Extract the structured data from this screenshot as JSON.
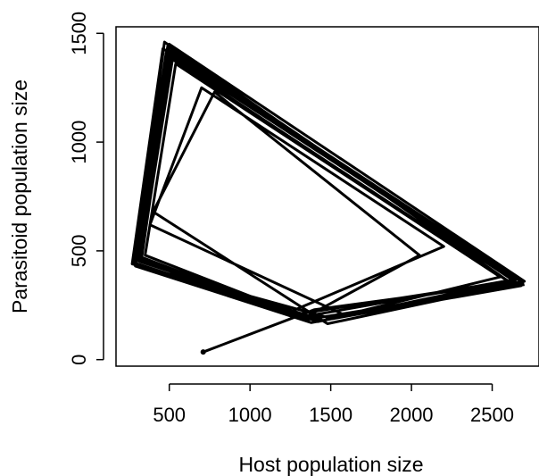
{
  "chart_data": {
    "type": "line",
    "title": "",
    "xlabel": "Host population size",
    "ylabel": "Parasitoid population size",
    "xlim": [
      170,
      2790
    ],
    "ylim": [
      -30,
      1530
    ],
    "x_ticks": [
      500,
      1000,
      1500,
      2000,
      2500
    ],
    "y_ticks": [
      0,
      500,
      1000,
      1500
    ],
    "x_tick_labels": [
      "500",
      "1000",
      "1500",
      "2000",
      "2500"
    ],
    "y_tick_labels": [
      "0",
      "500",
      "1000",
      "1500"
    ],
    "grid": false,
    "legend": "none",
    "line_color": "#000000",
    "start_point": {
      "x": 710,
      "y": 35
    },
    "series": [
      {
        "points": [
          [
            710,
            35
          ],
          [
            1400,
            230
          ],
          [
            2700,
            360
          ],
          [
            500,
            1450
          ],
          [
            280,
            460
          ],
          [
            1350,
            200
          ],
          [
            2650,
            370
          ],
          [
            480,
            1410
          ],
          [
            300,
            470
          ],
          [
            1300,
            210
          ],
          [
            2600,
            360
          ],
          [
            520,
            1380
          ],
          [
            320,
            450
          ],
          [
            1450,
            180
          ],
          [
            2680,
            340
          ],
          [
            460,
            1430
          ],
          [
            270,
            440
          ],
          [
            1500,
            190
          ],
          [
            2550,
            380
          ],
          [
            540,
            1360
          ],
          [
            350,
            480
          ],
          [
            1250,
            220
          ],
          [
            2200,
            520
          ],
          [
            700,
            1250
          ],
          [
            380,
            620
          ],
          [
            1600,
            200
          ],
          [
            2620,
            350
          ],
          [
            470,
            1460
          ],
          [
            290,
            430
          ],
          [
            1380,
            170
          ],
          [
            2690,
            355
          ],
          [
            500,
            1420
          ],
          [
            310,
            455
          ],
          [
            1420,
            175
          ],
          [
            2640,
            365
          ],
          [
            510,
            1400
          ],
          [
            330,
            470
          ],
          [
            1330,
            190
          ],
          [
            2050,
            480
          ],
          [
            780,
            1230
          ],
          [
            400,
            680
          ],
          [
            1480,
            165
          ],
          [
            2660,
            350
          ],
          [
            490,
            1440
          ],
          [
            285,
            445
          ],
          [
            1360,
            185
          ],
          [
            2700,
            345
          ]
        ]
      }
    ]
  }
}
